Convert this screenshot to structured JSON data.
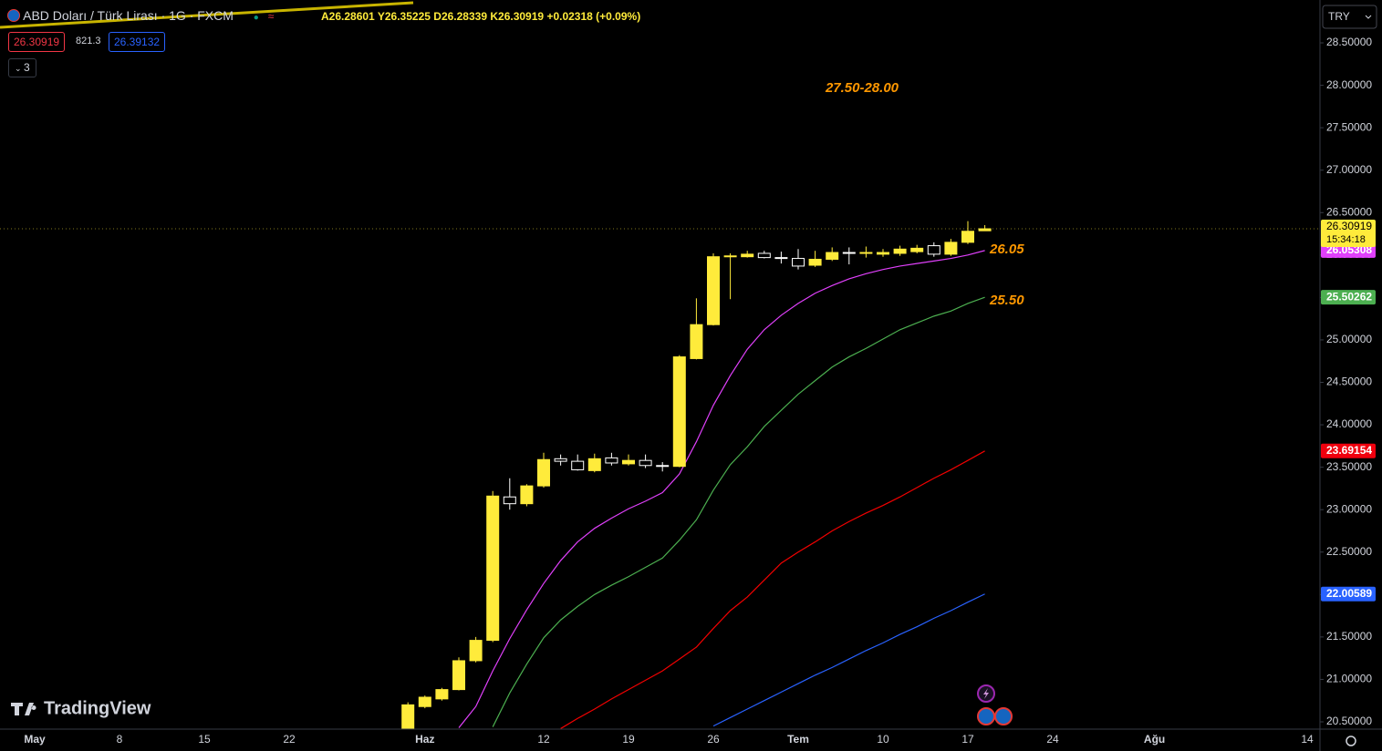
{
  "header": {
    "symbol_title": "ABD Doları / Türk Lirası · 1G · FXCM",
    "ohlc_prefixes": [
      "A",
      "Y",
      "D",
      "K"
    ],
    "change": {
      "value": 0.02318,
      "label": "+0.02318"
    },
    "change_pct": {
      "value": 0.09,
      "label": "(+0.09%)"
    },
    "bid": 26.30919,
    "spread": 821.3,
    "ask": 26.39132,
    "indicator_count": 3,
    "currency": "TRY",
    "logo": "TradingView"
  },
  "chart_data": {
    "type": "candlestick",
    "up_color": "#ffeb3b",
    "down_color": "#ffffff",
    "grid": false,
    "categories": [
      "May",
      null,
      null,
      null,
      null,
      "8",
      null,
      null,
      null,
      null,
      "15",
      null,
      null,
      null,
      null,
      "22",
      null,
      null,
      null,
      null,
      null,
      null,
      null,
      "Haz",
      null,
      null,
      null,
      null,
      null,
      null,
      "12",
      null,
      null,
      null,
      null,
      "19",
      null,
      null,
      null,
      null,
      "26",
      null,
      null,
      null,
      null,
      "Tem",
      null,
      null,
      null,
      null,
      "10",
      null,
      null,
      null,
      null,
      "17",
      null,
      null,
      null,
      null,
      "24",
      null,
      null,
      null,
      null,
      null,
      "Ağu",
      null,
      null,
      null,
      null,
      null,
      null,
      null,
      null,
      "14"
    ],
    "open": [
      null,
      null,
      null,
      null,
      null,
      null,
      null,
      null,
      null,
      null,
      null,
      null,
      null,
      null,
      null,
      null,
      null,
      null,
      null,
      null,
      null,
      null,
      20.4,
      20.68,
      20.77,
      20.88,
      21.22,
      21.46,
      23.15,
      23.07,
      23.28,
      23.6,
      23.57,
      23.46,
      23.61,
      23.54,
      23.58,
      23.52,
      23.51,
      24.78,
      25.18,
      25.98,
      25.98,
      26.02,
      25.97,
      25.96,
      25.88,
      25.95,
      26.03,
      26.02,
      26.01,
      26.02,
      26.04,
      26.11,
      26.01,
      26.15,
      26.28601,
      null,
      null,
      null,
      null,
      null,
      null,
      null,
      null,
      null,
      null,
      null,
      null,
      null,
      null,
      null,
      null,
      null,
      null,
      null
    ],
    "high": [
      null,
      null,
      null,
      null,
      null,
      null,
      null,
      null,
      null,
      null,
      null,
      null,
      null,
      null,
      null,
      null,
      null,
      null,
      null,
      null,
      null,
      null,
      20.73,
      20.81,
      20.9,
      21.26,
      21.5,
      23.22,
      23.37,
      23.3,
      23.67,
      23.65,
      23.65,
      23.66,
      23.67,
      23.65,
      23.65,
      23.56,
      24.82,
      25.49,
      26.02,
      26.02,
      26.05,
      26.05,
      26.04,
      26.07,
      26.05,
      26.09,
      26.09,
      26.1,
      26.07,
      26.11,
      26.12,
      26.15,
      26.19,
      26.4,
      26.35225,
      null,
      null,
      null,
      null,
      null,
      null,
      null,
      null,
      null,
      null,
      null,
      null,
      null,
      null,
      null,
      null,
      null,
      null,
      null
    ],
    "low": [
      null,
      null,
      null,
      null,
      null,
      null,
      null,
      null,
      null,
      null,
      null,
      null,
      null,
      null,
      null,
      null,
      null,
      null,
      null,
      null,
      null,
      null,
      20.35,
      20.66,
      20.75,
      20.87,
      21.2,
      21.44,
      23.0,
      23.04,
      23.26,
      23.52,
      23.46,
      23.44,
      23.52,
      23.52,
      23.49,
      23.45,
      23.5,
      24.77,
      25.17,
      25.48,
      25.97,
      25.96,
      25.9,
      25.83,
      25.86,
      25.93,
      25.89,
      25.97,
      25.98,
      25.99,
      26.02,
      25.98,
      25.99,
      26.13,
      26.28339,
      null,
      null,
      null,
      null,
      null,
      null,
      null,
      null,
      null,
      null,
      null,
      null,
      null,
      null,
      null,
      null,
      null,
      null,
      null
    ],
    "close": [
      null,
      null,
      null,
      null,
      null,
      null,
      null,
      null,
      null,
      null,
      null,
      null,
      null,
      null,
      null,
      null,
      null,
      null,
      null,
      null,
      null,
      null,
      20.7,
      20.79,
      20.88,
      21.22,
      21.46,
      23.16,
      23.07,
      23.28,
      23.59,
      23.57,
      23.47,
      23.6,
      23.55,
      23.58,
      23.52,
      23.51,
      24.8,
      25.18,
      25.98,
      25.99,
      26.01,
      25.97,
      25.96,
      25.87,
      25.95,
      26.03,
      26.02,
      26.03,
      26.03,
      26.07,
      26.08,
      26.01,
      26.15,
      26.28,
      26.30919,
      null,
      null,
      null,
      null,
      null,
      null,
      null,
      null,
      null,
      null,
      null,
      null,
      null,
      null,
      null,
      null,
      null,
      null,
      null
    ],
    "countdown": "15:34:18",
    "series": [
      {
        "color": "#e040fb",
        "values": [
          null,
          null,
          null,
          null,
          null,
          null,
          null,
          null,
          null,
          null,
          null,
          null,
          null,
          null,
          null,
          null,
          null,
          null,
          null,
          null,
          null,
          null,
          null,
          null,
          null,
          20.43,
          20.68,
          21.1,
          21.48,
          21.82,
          22.13,
          22.4,
          22.62,
          22.78,
          22.9,
          23.01,
          23.1,
          23.2,
          23.42,
          23.8,
          24.23,
          24.58,
          24.89,
          25.12,
          25.29,
          25.43,
          25.55,
          25.64,
          25.72,
          25.78,
          25.83,
          25.87,
          25.9,
          25.93,
          25.96,
          26.0,
          26.05308,
          null,
          null,
          null,
          null,
          null,
          null,
          null,
          null,
          null,
          null,
          null,
          null,
          null,
          null,
          null,
          null,
          null,
          null,
          null
        ]
      },
      {
        "color": "#4caf50",
        "values": [
          null,
          null,
          null,
          null,
          null,
          null,
          null,
          null,
          null,
          null,
          null,
          null,
          null,
          null,
          null,
          null,
          null,
          null,
          null,
          null,
          null,
          null,
          null,
          null,
          null,
          null,
          null,
          20.44,
          20.84,
          21.18,
          21.49,
          21.7,
          21.86,
          22.0,
          22.11,
          22.21,
          22.32,
          22.43,
          22.64,
          22.88,
          23.23,
          23.53,
          23.74,
          23.98,
          24.17,
          24.36,
          24.52,
          24.68,
          24.8,
          24.9,
          25.01,
          25.12,
          25.2,
          25.28,
          25.34,
          25.43,
          25.50262,
          null,
          null,
          null,
          null,
          null,
          null,
          null,
          null,
          null,
          null,
          null,
          null,
          null,
          null,
          null,
          null,
          null,
          null,
          null
        ]
      },
      {
        "color": "#f20000",
        "tag_color": "#f0000e",
        "values": [
          null,
          null,
          null,
          null,
          null,
          null,
          null,
          null,
          null,
          null,
          null,
          null,
          null,
          null,
          null,
          null,
          null,
          null,
          null,
          null,
          null,
          null,
          null,
          null,
          null,
          null,
          null,
          null,
          null,
          null,
          null,
          20.42,
          20.54,
          20.65,
          20.77,
          20.88,
          20.99,
          21.1,
          21.24,
          21.38,
          21.6,
          21.81,
          21.97,
          22.17,
          22.37,
          22.5,
          22.62,
          22.75,
          22.86,
          22.96,
          23.05,
          23.15,
          23.26,
          23.37,
          23.47,
          23.58,
          23.69154,
          null,
          null,
          null,
          null,
          null,
          null,
          null,
          null,
          null,
          null,
          null,
          null,
          null,
          null,
          null,
          null,
          null,
          null,
          null
        ]
      },
      {
        "color": "#2962ff",
        "values": [
          null,
          null,
          null,
          null,
          null,
          null,
          null,
          null,
          null,
          null,
          null,
          null,
          null,
          null,
          null,
          null,
          null,
          null,
          null,
          null,
          null,
          null,
          null,
          null,
          null,
          null,
          null,
          null,
          null,
          null,
          null,
          null,
          null,
          null,
          null,
          null,
          null,
          null,
          null,
          null,
          20.45,
          20.55,
          20.65,
          20.75,
          20.85,
          20.95,
          21.05,
          21.14,
          21.24,
          21.34,
          21.43,
          21.53,
          21.62,
          21.72,
          21.81,
          21.91,
          22.00589,
          null,
          null,
          null,
          null,
          null,
          null,
          null,
          null,
          null,
          null,
          null,
          null,
          null,
          null,
          null,
          null,
          null,
          null,
          null
        ]
      }
    ],
    "ylim": [
      20.414,
      29.005
    ],
    "yticks": [
      {
        "value": 20.5,
        "label": "20.50000"
      },
      {
        "value": 21,
        "label": "21.00000"
      },
      {
        "value": 21.5,
        "label": "21.50000"
      },
      {
        "value": 22,
        "label": "22.00000"
      },
      {
        "value": 22.5,
        "label": "22.50000"
      },
      {
        "value": 23,
        "label": "23.00000"
      },
      {
        "value": 23.5,
        "label": "23.50000"
      },
      {
        "value": 24,
        "label": "24.00000"
      },
      {
        "value": 24.5,
        "label": "24.50000"
      },
      {
        "value": 25,
        "label": "25.00000"
      },
      {
        "value": 25.5,
        "label": "25.50000"
      },
      {
        "value": 26,
        "label": "26.00000"
      },
      {
        "value": 26.5,
        "label": "26.50000"
      },
      {
        "value": 27,
        "label": "27.00000"
      },
      {
        "value": 27.5,
        "label": "27.50000"
      },
      {
        "value": 28,
        "label": "28.00000"
      },
      {
        "value": 28.5,
        "label": "28.50000"
      }
    ],
    "annotations": [
      "27.50-28.00",
      "26.05",
      "25.50"
    ]
  }
}
